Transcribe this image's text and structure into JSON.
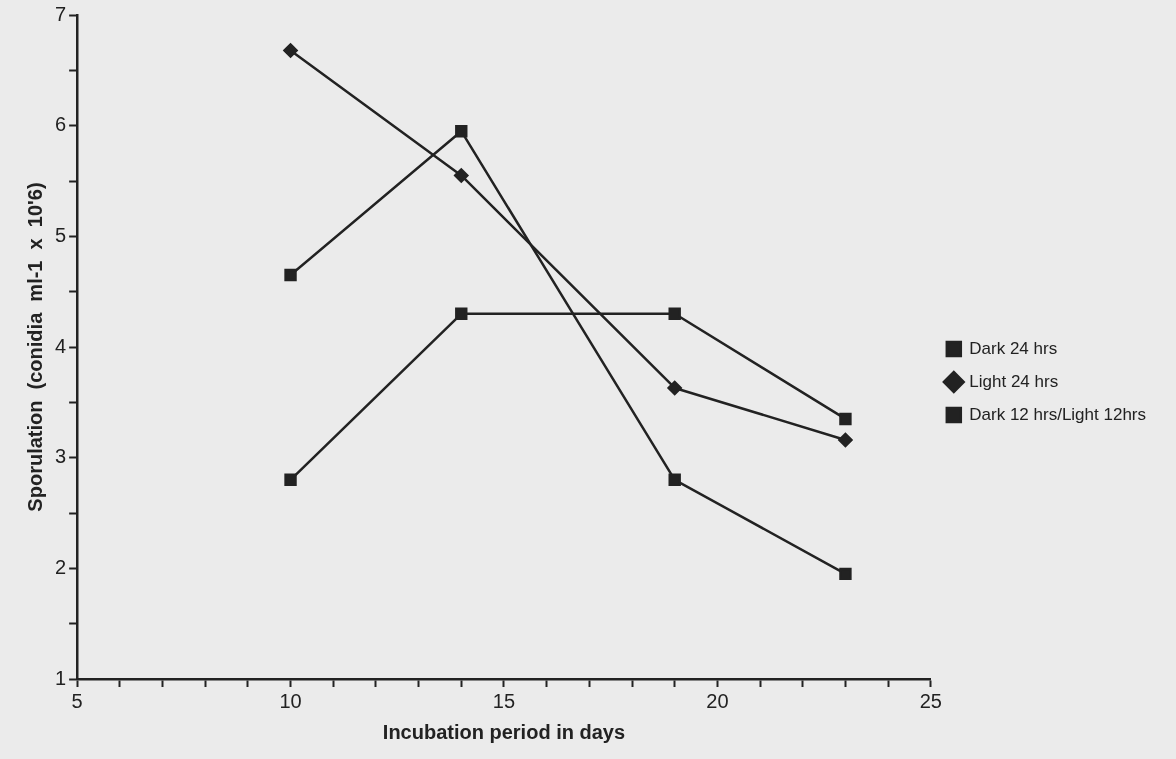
{
  "chart_data": {
    "type": "line",
    "xlabel": "Incubation period in days",
    "ylabel": "Sporulation  (conidia  ml-1  x  10'6)",
    "x": [
      10,
      14,
      19,
      23
    ],
    "series": [
      {
        "name": "Dark 24 hrs",
        "color": "#222222",
        "marker": "square",
        "values": [
          2.8,
          4.3,
          4.3,
          3.35
        ]
      },
      {
        "name": "Light 24 hrs",
        "color": "#222222",
        "marker": "diamond",
        "values": [
          6.68,
          5.55,
          3.63,
          3.16
        ]
      },
      {
        "name": "Dark 12 hrs/Light 12hrs",
        "color": "#222222",
        "marker": "square",
        "values": [
          4.65,
          5.95,
          2.8,
          1.95
        ]
      }
    ],
    "xlim": [
      5,
      25
    ],
    "xticks": [
      5,
      {
        "value": 6,
        "label": null
      },
      {
        "value": 7,
        "label": null
      },
      {
        "value": 8,
        "label": null
      },
      {
        "value": 9,
        "label": null
      },
      10,
      {
        "value": 11,
        "label": null
      },
      {
        "value": 12,
        "label": null
      },
      {
        "value": 13,
        "label": null
      },
      {
        "value": 14,
        "label": null
      },
      15,
      {
        "value": 16,
        "label": null
      },
      {
        "value": 17,
        "label": null
      },
      {
        "value": 18,
        "label": null
      },
      {
        "value": 19,
        "label": null
      },
      20,
      {
        "value": 21,
        "label": null
      },
      {
        "value": 22,
        "label": null
      },
      {
        "value": 23,
        "label": null
      },
      {
        "value": 24,
        "label": null
      },
      25
    ],
    "ylim": [
      1,
      7
    ],
    "yticks": [
      1,
      {
        "value": 1.5,
        "label": null
      },
      2,
      {
        "value": 2.5,
        "label": null
      },
      3,
      {
        "value": 3.5,
        "label": null
      },
      4,
      {
        "value": 4.5,
        "label": null
      },
      5,
      {
        "value": 5.5,
        "label": null
      },
      6,
      {
        "value": 6.5,
        "label": null
      },
      7
    ],
    "grid": false,
    "legend": "right",
    "line_style": "solid"
  }
}
